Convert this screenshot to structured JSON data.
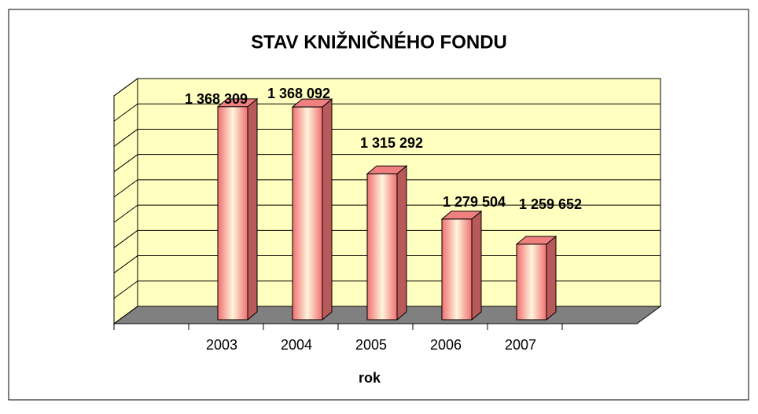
{
  "chart_data": {
    "type": "bar3d",
    "title": "STAV KNIŽNIČNÉHO FONDU",
    "x_label": "rok",
    "categories": [
      "2003",
      "2004",
      "2005",
      "2006",
      "2007"
    ],
    "values": [
      1368309,
      1368092,
      1315292,
      1279504,
      1259652
    ],
    "value_labels": [
      "1 368 309",
      "1 368 092",
      "1 315 292",
      "1 279 504",
      "1 259 652"
    ],
    "color": "#f08080",
    "ylim": [
      1200000,
      1380000
    ],
    "yticks": [
      1200000,
      1220000,
      1240000,
      1260000,
      1280000,
      1300000,
      1320000,
      1340000,
      1360000,
      1380000
    ],
    "grid": true
  }
}
